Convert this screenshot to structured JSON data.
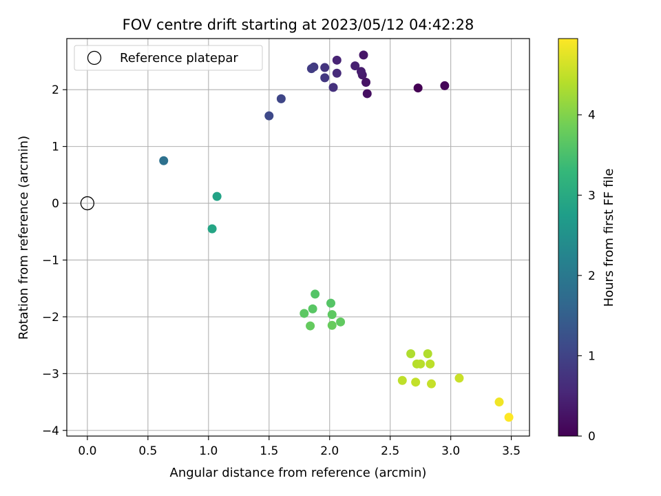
{
  "chart_data": {
    "type": "scatter",
    "title": "FOV centre drift starting at 2023/05/12 04:42:28",
    "xlabel": "Angular distance from reference (arcmin)",
    "ylabel": "Rotation from reference (arcmin)",
    "xlim": [
      -0.17,
      3.65
    ],
    "ylim": [
      -4.1,
      2.9
    ],
    "x_ticks": [
      0.0,
      0.5,
      1.0,
      1.5,
      2.0,
      2.5,
      3.0,
      3.5
    ],
    "x_tick_labels": [
      "0.0",
      "0.5",
      "1.0",
      "1.5",
      "2.0",
      "2.5",
      "3.0",
      "3.5"
    ],
    "y_ticks": [
      2,
      1,
      0,
      -1,
      -2,
      -3,
      -4
    ],
    "y_tick_labels": [
      "2",
      "1",
      "0",
      "−1",
      "−2",
      "−3",
      "−4"
    ],
    "grid": true,
    "legend": {
      "placement": "top-left",
      "entries": [
        {
          "label": "Reference platepar",
          "marker": "open-circle"
        }
      ]
    },
    "reference": {
      "x": 0.0,
      "y": 0.0
    },
    "colorbar": {
      "label": "Hours from first FF file",
      "colormap": "viridis",
      "range": [
        0,
        4.95
      ],
      "ticks": [
        0,
        1,
        2,
        3,
        4
      ],
      "tick_labels": [
        "0",
        "1",
        "2",
        "3",
        "4"
      ],
      "stops": [
        "#440154",
        "#482878",
        "#3e4989",
        "#31688e",
        "#26828e",
        "#1f9e89",
        "#35b779",
        "#6ece58",
        "#b5de2b",
        "#fde725"
      ]
    },
    "points": [
      {
        "x": 2.73,
        "y": 2.03,
        "c": 0.0
      },
      {
        "x": 2.95,
        "y": 2.07,
        "c": 0.05
      },
      {
        "x": 2.31,
        "y": 1.93,
        "c": 0.2
      },
      {
        "x": 2.3,
        "y": 2.13,
        "c": 0.25
      },
      {
        "x": 2.28,
        "y": 2.61,
        "c": 0.3
      },
      {
        "x": 2.27,
        "y": 2.26,
        "c": 0.35
      },
      {
        "x": 2.26,
        "y": 2.32,
        "c": 0.4
      },
      {
        "x": 2.21,
        "y": 2.42,
        "c": 0.45
      },
      {
        "x": 2.06,
        "y": 2.52,
        "c": 0.5
      },
      {
        "x": 2.06,
        "y": 2.29,
        "c": 0.6
      },
      {
        "x": 2.03,
        "y": 2.04,
        "c": 0.7
      },
      {
        "x": 1.96,
        "y": 2.39,
        "c": 0.75
      },
      {
        "x": 1.96,
        "y": 2.21,
        "c": 0.8
      },
      {
        "x": 1.87,
        "y": 2.4,
        "c": 0.85
      },
      {
        "x": 1.85,
        "y": 2.37,
        "c": 0.9
      },
      {
        "x": 1.6,
        "y": 1.84,
        "c": 1.05
      },
      {
        "x": 1.5,
        "y": 1.54,
        "c": 1.1
      },
      {
        "x": 0.63,
        "y": 0.75,
        "c": 1.85
      },
      {
        "x": 1.07,
        "y": 0.12,
        "c": 2.85
      },
      {
        "x": 1.03,
        "y": -0.45,
        "c": 2.9
      },
      {
        "x": 1.88,
        "y": -1.6,
        "c": 3.6
      },
      {
        "x": 2.01,
        "y": -1.76,
        "c": 3.62
      },
      {
        "x": 1.86,
        "y": -1.86,
        "c": 3.65
      },
      {
        "x": 1.79,
        "y": -1.94,
        "c": 3.68
      },
      {
        "x": 2.02,
        "y": -1.96,
        "c": 3.7
      },
      {
        "x": 2.09,
        "y": -2.09,
        "c": 3.72
      },
      {
        "x": 1.84,
        "y": -2.16,
        "c": 3.75
      },
      {
        "x": 2.02,
        "y": -2.15,
        "c": 3.78
      },
      {
        "x": 2.67,
        "y": -2.65,
        "c": 4.35
      },
      {
        "x": 2.81,
        "y": -2.65,
        "c": 4.37
      },
      {
        "x": 2.72,
        "y": -2.83,
        "c": 4.4
      },
      {
        "x": 2.75,
        "y": -2.83,
        "c": 4.42
      },
      {
        "x": 2.83,
        "y": -2.83,
        "c": 4.45
      },
      {
        "x": 2.6,
        "y": -3.12,
        "c": 4.47
      },
      {
        "x": 2.71,
        "y": -3.15,
        "c": 4.5
      },
      {
        "x": 2.84,
        "y": -3.18,
        "c": 4.52
      },
      {
        "x": 3.07,
        "y": -3.08,
        "c": 4.55
      },
      {
        "x": 3.4,
        "y": -3.5,
        "c": 4.85
      },
      {
        "x": 3.48,
        "y": -3.77,
        "c": 4.95
      }
    ]
  }
}
